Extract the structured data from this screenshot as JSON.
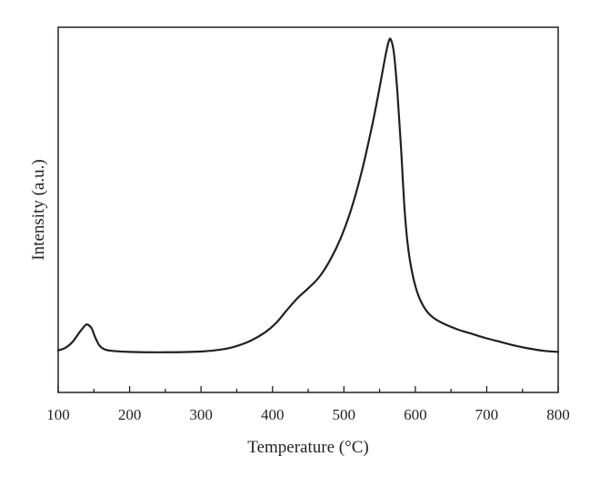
{
  "chart_data": {
    "type": "line",
    "title": "",
    "xlabel": "Temperature (°C)",
    "ylabel": "Intensity (a.u.)",
    "xlim": [
      100,
      800
    ],
    "ylim": [
      0,
      1
    ],
    "x_ticks": [
      "100",
      "200",
      "300",
      "400",
      "500",
      "600",
      "700",
      "800"
    ],
    "y_ticks": [],
    "grid": false,
    "legend": "none",
    "line_color": "#231f20",
    "series": [
      {
        "values": [
          [
            100,
            0.115
          ],
          [
            110,
            0.122
          ],
          [
            120,
            0.138
          ],
          [
            130,
            0.165
          ],
          [
            138,
            0.184
          ],
          [
            142,
            0.185
          ],
          [
            147,
            0.175
          ],
          [
            152,
            0.15
          ],
          [
            158,
            0.128
          ],
          [
            165,
            0.118
          ],
          [
            175,
            0.114
          ],
          [
            200,
            0.111
          ],
          [
            250,
            0.11
          ],
          [
            300,
            0.112
          ],
          [
            330,
            0.118
          ],
          [
            350,
            0.127
          ],
          [
            370,
            0.142
          ],
          [
            390,
            0.165
          ],
          [
            405,
            0.19
          ],
          [
            420,
            0.225
          ],
          [
            435,
            0.258
          ],
          [
            450,
            0.285
          ],
          [
            465,
            0.315
          ],
          [
            480,
            0.36
          ],
          [
            495,
            0.42
          ],
          [
            510,
            0.5
          ],
          [
            525,
            0.605
          ],
          [
            540,
            0.735
          ],
          [
            550,
            0.835
          ],
          [
            558,
            0.92
          ],
          [
            563,
            0.963
          ],
          [
            566,
            0.965
          ],
          [
            570,
            0.93
          ],
          [
            575,
            0.82
          ],
          [
            580,
            0.67
          ],
          [
            585,
            0.5
          ],
          [
            590,
            0.395
          ],
          [
            597,
            0.315
          ],
          [
            605,
            0.262
          ],
          [
            615,
            0.225
          ],
          [
            625,
            0.205
          ],
          [
            640,
            0.188
          ],
          [
            660,
            0.172
          ],
          [
            680,
            0.16
          ],
          [
            700,
            0.148
          ],
          [
            720,
            0.138
          ],
          [
            740,
            0.128
          ],
          [
            760,
            0.12
          ],
          [
            780,
            0.114
          ],
          [
            800,
            0.111
          ]
        ]
      }
    ]
  }
}
